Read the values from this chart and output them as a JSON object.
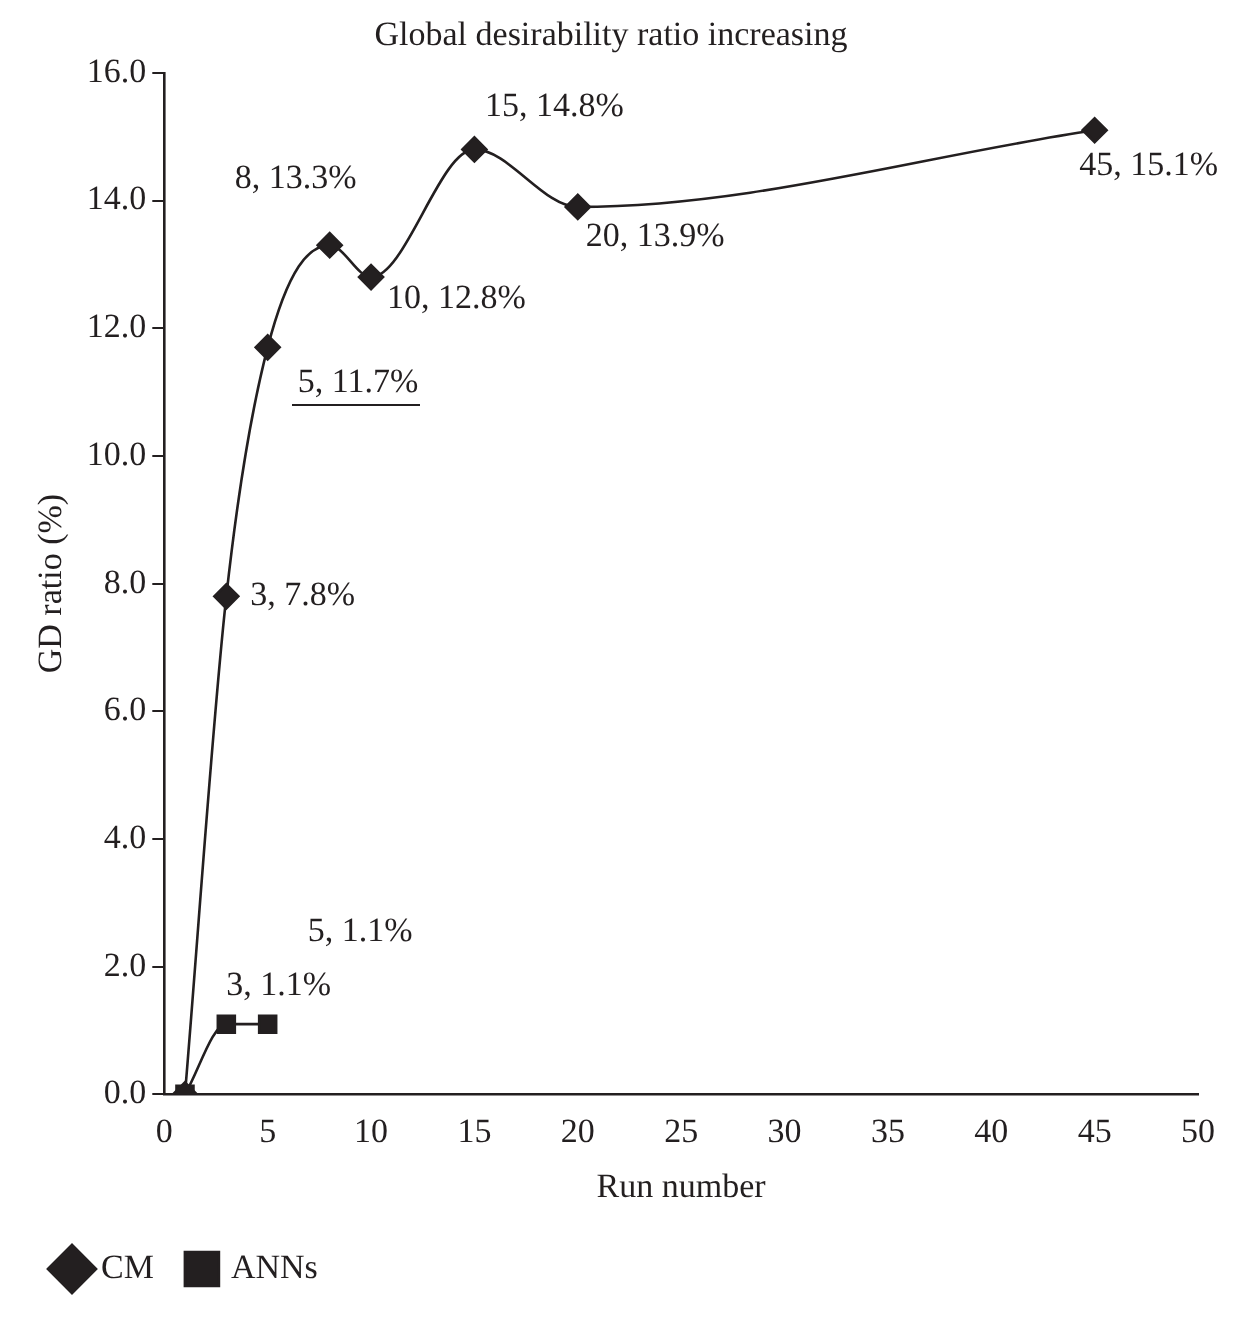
{
  "chart_data": {
    "type": "line",
    "title": "Global desirability ratio increasing",
    "xlabel": "Run number",
    "ylabel": "GD ratio (%)",
    "xlim": [
      0,
      50
    ],
    "xticks": [
      0,
      5,
      10,
      15,
      20,
      25,
      30,
      35,
      40,
      45,
      50
    ],
    "ylim": [
      0,
      16
    ],
    "yticks": [
      {
        "value": 0,
        "label": "0.0"
      },
      {
        "value": 2,
        "label": "2.0"
      },
      {
        "value": 4,
        "label": "4.0"
      },
      {
        "value": 6,
        "label": "6.0"
      },
      {
        "value": 8,
        "label": "8.0"
      },
      {
        "value": 10,
        "label": "10.0"
      },
      {
        "value": 12,
        "label": "12.0"
      },
      {
        "value": 14,
        "label": "14.0"
      },
      {
        "value": 16,
        "label": "16.0"
      }
    ],
    "grid": false,
    "legend": "bottom left",
    "line_style": "solid",
    "series": [
      {
        "name": "CM",
        "color": "#231f20",
        "marker": "diamond",
        "x": [
          1,
          3,
          5,
          8,
          10,
          15,
          20,
          45
        ],
        "values": [
          0,
          7.8,
          11.7,
          13.3,
          12.8,
          14.8,
          13.9,
          15.1
        ]
      },
      {
        "name": "ANNs",
        "color": "#231f20",
        "marker": "square",
        "x": [
          1,
          3,
          5
        ],
        "values": [
          0,
          1.1,
          1.1
        ]
      }
    ],
    "annotations": [
      {
        "text": "3, 7.8%",
        "x": 3,
        "y": 7.8
      },
      {
        "text": "5, 11.7%",
        "x": 5,
        "y": 11.7
      },
      {
        "text": "8, 13.3%",
        "x": 8,
        "y": 13.3
      },
      {
        "text": "10, 12.8%",
        "x": 10,
        "y": 12.8
      },
      {
        "text": "15, 14.8%",
        "x": 15,
        "y": 14.8
      },
      {
        "text": "20, 13.9%",
        "x": 20,
        "y": 13.9
      },
      {
        "text": "45, 15.1%",
        "x": 45,
        "y": 15.1
      },
      {
        "text": "3, 1.1%",
        "x": 3,
        "y": 1.1
      },
      {
        "text": "5, 1.1%",
        "x": 5,
        "y": 1.1
      }
    ]
  }
}
